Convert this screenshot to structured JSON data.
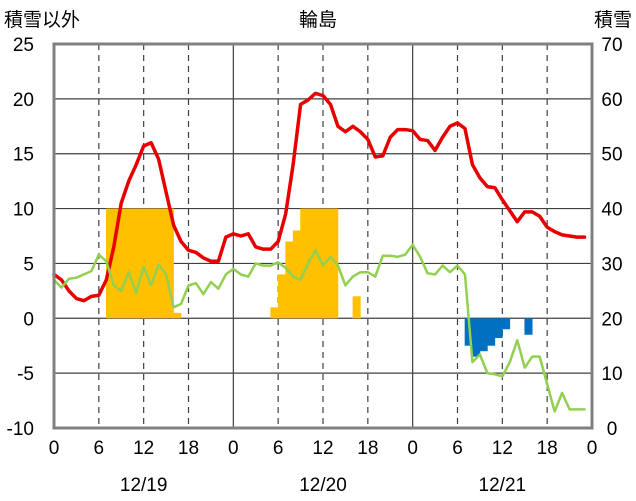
{
  "chart_data": {
    "type": "bar+line",
    "title": "輪島",
    "left_axis": {
      "label": "積雪以外",
      "ticks": [
        "25",
        "20",
        "15",
        "10",
        "5",
        "0",
        "-5",
        "-10"
      ],
      "range": [
        -10,
        25
      ]
    },
    "right_axis": {
      "label": "積雪",
      "ticks": [
        "70",
        "60",
        "50",
        "40",
        "30",
        "20",
        "10",
        "0"
      ],
      "range": [
        0,
        70
      ]
    },
    "x_axis": {
      "hour_ticks": [
        "0",
        "6",
        "12",
        "18",
        "0",
        "6",
        "12",
        "18",
        "0",
        "6",
        "12",
        "18",
        "0"
      ],
      "dates": [
        "12/19",
        "12/20",
        "12/21"
      ],
      "range_hours": [
        0,
        72
      ]
    },
    "grid": true,
    "colors": {
      "temperature": "#e80000",
      "humidity_like": "#92d050",
      "snowfall_bars": "#ffc000",
      "negative_bars": "#0070c0",
      "snow_depth": "#7030a0",
      "grid": "#404040",
      "frame": "#808080"
    },
    "series": [
      {
        "color_key": "temperature",
        "style": "line",
        "x": [
          0,
          1,
          2,
          3,
          4,
          5,
          6,
          7,
          8,
          9,
          10,
          11,
          12,
          13,
          14,
          15,
          16,
          17,
          18,
          19,
          20,
          21,
          22,
          23,
          24,
          25,
          26,
          27,
          28,
          29,
          30,
          31,
          32,
          33,
          34,
          35,
          36,
          37,
          38,
          39,
          40,
          41,
          42,
          43,
          44,
          45,
          46,
          47,
          48,
          49,
          50,
          51,
          52,
          53,
          54,
          55,
          56,
          57,
          58,
          59,
          60,
          61,
          62,
          63,
          64,
          65,
          66,
          67,
          68,
          69,
          70,
          71
        ],
        "values": [
          4.0,
          3.5,
          2.5,
          1.8,
          1.6,
          2.0,
          2.1,
          3.5,
          6.5,
          10.5,
          12.5,
          14.0,
          15.7,
          16.0,
          14.5,
          11.5,
          8.5,
          7.0,
          6.2,
          6.0,
          5.5,
          5.2,
          5.2,
          7.4,
          7.7,
          7.5,
          7.7,
          6.5,
          6.3,
          6.3,
          7.0,
          9.5,
          14.0,
          19.5,
          19.9,
          20.5,
          20.3,
          19.5,
          17.5,
          17.0,
          17.5,
          17.0,
          16.3,
          14.7,
          14.8,
          16.5,
          17.2,
          17.2,
          17.1,
          16.3,
          16.2,
          15.3,
          16.5,
          17.5,
          17.8,
          17.3,
          14.0,
          12.8,
          12.0,
          11.9,
          10.8,
          9.8,
          8.8,
          9.7,
          9.7,
          9.3,
          8.3,
          7.9,
          7.6,
          7.5,
          7.4,
          7.4
        ]
      },
      {
        "color_key": "humidity_like",
        "style": "line",
        "x": [
          0,
          1,
          2,
          3,
          4,
          5,
          6,
          7,
          8,
          9,
          10,
          11,
          12,
          13,
          14,
          15,
          16,
          17,
          18,
          19,
          20,
          21,
          22,
          23,
          24,
          25,
          26,
          27,
          28,
          29,
          30,
          31,
          32,
          33,
          34,
          35,
          36,
          37,
          38,
          39,
          40,
          41,
          42,
          43,
          44,
          45,
          46,
          47,
          48,
          49,
          50,
          51,
          52,
          53,
          54,
          55,
          56,
          57,
          58,
          59,
          60,
          61,
          62,
          63,
          64,
          65,
          66,
          67,
          68,
          69,
          70,
          71
        ],
        "values": [
          3.5,
          2.8,
          3.6,
          3.7,
          4.0,
          4.3,
          5.8,
          5.2,
          3.0,
          2.5,
          4.2,
          2.3,
          4.7,
          3.0,
          4.9,
          4.0,
          1.0,
          1.3,
          3.0,
          3.2,
          2.2,
          3.3,
          2.7,
          4.0,
          4.5,
          4.0,
          3.8,
          5.0,
          4.8,
          4.8,
          5.1,
          4.6,
          3.8,
          3.5,
          5.0,
          6.2,
          4.8,
          5.6,
          4.8,
          3.0,
          3.8,
          4.2,
          4.2,
          3.8,
          5.7,
          5.7,
          5.6,
          5.8,
          6.7,
          5.6,
          4.1,
          4.0,
          4.8,
          4.2,
          4.8,
          4.0,
          -4.0,
          -3.3,
          -5.0,
          -5.1,
          -5.3,
          -4.0,
          -2.0,
          -4.5,
          -3.5,
          -3.5,
          -6.0,
          -8.5,
          -6.8,
          -8.3,
          -8.3,
          -8.3
        ]
      },
      {
        "color_key": "snowfall_bars",
        "style": "bar",
        "x": [
          7,
          8,
          9,
          10,
          11,
          12,
          13,
          14,
          15,
          16,
          29,
          30,
          31,
          32,
          33,
          34,
          35,
          36,
          37,
          38,
          40
        ],
        "values": [
          10,
          10,
          10,
          10,
          10,
          10,
          10,
          10,
          10,
          0.5,
          1,
          4,
          7,
          8,
          10,
          10,
          10,
          10,
          10,
          0,
          2
        ]
      },
      {
        "color_key": "negative_bars",
        "style": "bar",
        "x": [
          55,
          56,
          57,
          58,
          59,
          60,
          63
        ],
        "values": [
          -2.5,
          -3.5,
          -3.0,
          -2.5,
          -1.8,
          -1.0,
          -1.5
        ]
      },
      {
        "color_key": "snow_depth",
        "style": "line",
        "x": [
          0,
          72
        ],
        "values_right_axis": [
          0,
          0
        ]
      }
    ]
  }
}
